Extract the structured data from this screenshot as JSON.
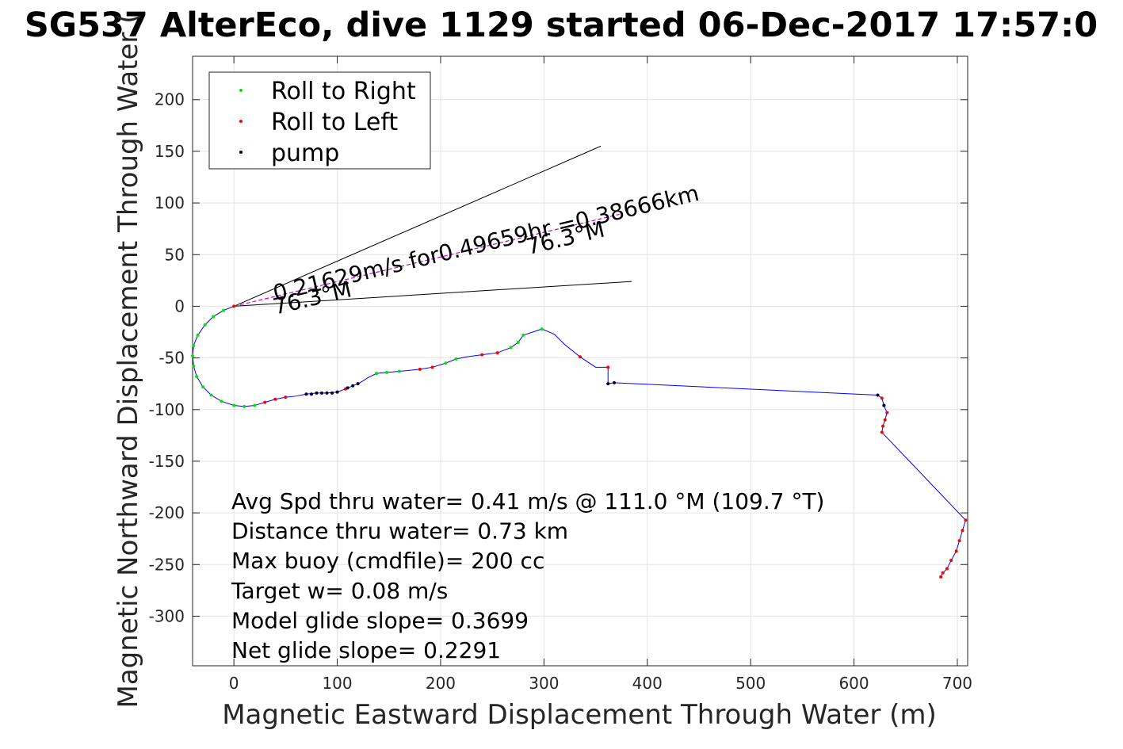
{
  "chart_data": {
    "type": "scatter",
    "title": "SG537 AlterEco, dive 1129 started 06-Dec-2017 17:57:0",
    "xlabel": "Magnetic Eastward Displacement Through Water (m)",
    "ylabel": "Magnetic Northward Displacement Through Water (",
    "xlim": [
      -40,
      710
    ],
    "ylim": [
      -348,
      242
    ],
    "xticks": [
      0,
      100,
      200,
      300,
      400,
      500,
      600,
      700
    ],
    "yticks": [
      -300,
      -250,
      -200,
      -150,
      -100,
      -50,
      0,
      50,
      100,
      150,
      200
    ],
    "grid": true,
    "legend_placement": "top-left",
    "legend": [
      {
        "label": "Roll to Right",
        "color": "#00e600"
      },
      {
        "label": "Roll to Left",
        "color": "#ff0000"
      },
      {
        "label": "pump",
        "color": "#000033"
      }
    ],
    "track_color": "#0000ff",
    "series": [
      {
        "name": "track",
        "points": [
          [
            0,
            0
          ],
          [
            -10,
            -4
          ],
          [
            -20,
            -10
          ],
          [
            -28,
            -18
          ],
          [
            -35,
            -28
          ],
          [
            -39,
            -38
          ],
          [
            -40,
            -48
          ],
          [
            -39,
            -58
          ],
          [
            -36,
            -68
          ],
          [
            -30,
            -78
          ],
          [
            -22,
            -86
          ],
          [
            -12,
            -92
          ],
          [
            0,
            -96
          ],
          [
            10,
            -97
          ],
          [
            20,
            -96
          ],
          [
            30,
            -93
          ],
          [
            40,
            -90
          ],
          [
            50,
            -88
          ],
          [
            60,
            -87
          ],
          [
            70,
            -85
          ],
          [
            80,
            -84
          ],
          [
            90,
            -84
          ],
          [
            100,
            -83
          ],
          [
            108,
            -80
          ],
          [
            115,
            -77
          ],
          [
            122,
            -74
          ],
          [
            130,
            -69
          ],
          [
            138,
            -65
          ],
          [
            148,
            -64
          ],
          [
            160,
            -63
          ],
          [
            170,
            -62
          ],
          [
            180,
            -61
          ],
          [
            192,
            -59
          ],
          [
            205,
            -55
          ],
          [
            215,
            -51
          ],
          [
            225,
            -49
          ],
          [
            240,
            -47
          ],
          [
            255,
            -45
          ],
          [
            268,
            -40
          ],
          [
            275,
            -35
          ],
          [
            280,
            -28
          ],
          [
            298,
            -22
          ],
          [
            310,
            -27
          ],
          [
            320,
            -37
          ],
          [
            335,
            -49
          ],
          [
            350,
            -59
          ],
          [
            362,
            -59
          ],
          [
            362,
            -75
          ],
          [
            368,
            -74
          ],
          [
            623,
            -86
          ],
          [
            627,
            -89
          ],
          [
            629,
            -96
          ],
          [
            632,
            -103
          ],
          [
            630,
            -110
          ],
          [
            628,
            -116
          ],
          [
            627,
            -122
          ],
          [
            708,
            -207
          ],
          [
            705,
            -217
          ],
          [
            702,
            -227
          ],
          [
            699,
            -237
          ],
          [
            694,
            -246
          ],
          [
            690,
            -254
          ],
          [
            686,
            -258
          ],
          [
            684,
            -262
          ]
        ]
      },
      {
        "name": "Roll to Right",
        "points": [
          [
            -10,
            -4
          ],
          [
            -20,
            -10
          ],
          [
            -28,
            -18
          ],
          [
            -35,
            -28
          ],
          [
            -39,
            -38
          ],
          [
            -40,
            -48
          ],
          [
            -39,
            -58
          ],
          [
            -36,
            -68
          ],
          [
            -30,
            -78
          ],
          [
            -22,
            -86
          ],
          [
            -12,
            -92
          ],
          [
            0,
            -96
          ],
          [
            10,
            -97
          ],
          [
            20,
            -96
          ],
          [
            138,
            -65
          ],
          [
            148,
            -64
          ],
          [
            160,
            -63
          ],
          [
            205,
            -55
          ],
          [
            215,
            -51
          ],
          [
            268,
            -40
          ],
          [
            275,
            -35
          ],
          [
            280,
            -28
          ],
          [
            298,
            -22
          ]
        ]
      },
      {
        "name": "Roll to Left",
        "points": [
          [
            0,
            0
          ],
          [
            30,
            -93
          ],
          [
            40,
            -90
          ],
          [
            50,
            -88
          ],
          [
            100,
            -83
          ],
          [
            108,
            -80
          ],
          [
            180,
            -61
          ],
          [
            192,
            -59
          ],
          [
            240,
            -47
          ],
          [
            255,
            -45
          ],
          [
            335,
            -49
          ],
          [
            362,
            -59
          ],
          [
            627,
            -89
          ],
          [
            629,
            -96
          ],
          [
            632,
            -103
          ],
          [
            630,
            -110
          ],
          [
            628,
            -116
          ],
          [
            627,
            -122
          ],
          [
            708,
            -207
          ],
          [
            705,
            -217
          ],
          [
            702,
            -227
          ],
          [
            699,
            -237
          ],
          [
            694,
            -246
          ],
          [
            690,
            -254
          ],
          [
            686,
            -258
          ],
          [
            684,
            -262
          ]
        ]
      },
      {
        "name": "pump",
        "points": [
          [
            70,
            -85
          ],
          [
            75,
            -85
          ],
          [
            80,
            -84
          ],
          [
            85,
            -84
          ],
          [
            90,
            -84
          ],
          [
            95,
            -84
          ],
          [
            100,
            -83
          ],
          [
            110,
            -79
          ],
          [
            115,
            -77
          ],
          [
            120,
            -75
          ],
          [
            362,
            -75
          ],
          [
            368,
            -74
          ],
          [
            623,
            -86
          ],
          [
            629,
            -96
          ]
        ]
      }
    ],
    "bearing_lines": [
      {
        "from": [
          0,
          0
        ],
        "to": [
          355,
          155
        ]
      },
      {
        "from": [
          0,
          0
        ],
        "to": [
          385,
          24
        ]
      }
    ],
    "course_line": {
      "from": [
        0,
        0
      ],
      "to": [
        373,
        89
      ],
      "color": "#cc00cc"
    },
    "annotations": [
      {
        "text": "0.21629m/s for0.49659hr =0.38666km",
        "at": [
          40,
          5
        ],
        "rotation_deg": -13.4
      },
      {
        "text": "76.3°M",
        "at": [
          40,
          -8
        ],
        "rotation_deg": -13.4
      },
      {
        "text": "76.3°M",
        "at": [
          285,
          50
        ],
        "rotation_deg": -13.4
      }
    ],
    "stats": [
      "Avg Spd thru water=  0.41 m/s @ 111.0 °M (109.7 °T)",
      "Distance thru water=  0.73 km",
      "Max buoy (cmdfile)= 200 cc",
      "Target w= 0.08 m/s",
      "Model glide slope= 0.3699",
      "Net glide slope= 0.2291"
    ]
  }
}
